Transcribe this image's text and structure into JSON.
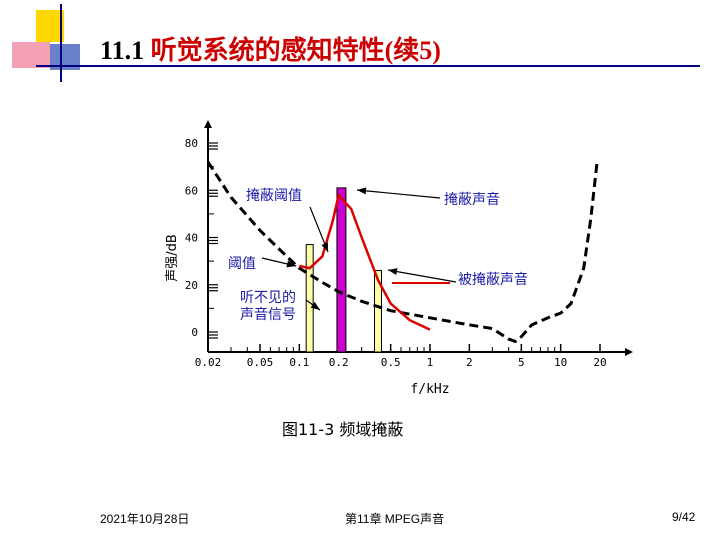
{
  "slide": {
    "title_num": "11.1 ",
    "title_text": "听觉系统的感知特性(续5)"
  },
  "chart_data": {
    "type": "line",
    "title": "",
    "xlabel": "f/kHz",
    "ylabel": "声强/dB",
    "xscale": "log",
    "xlim": [
      0.02,
      20
    ],
    "ylim": [
      0,
      80
    ],
    "x_ticks": [
      "0.02",
      "0.05",
      "0.1",
      "0.2",
      "0.5",
      "1",
      "2",
      "5",
      "10",
      "20"
    ],
    "y_ticks": [
      "0",
      "20",
      "40",
      "60",
      "80"
    ],
    "series": [
      {
        "color": "#000000",
        "style": "dashed",
        "x": [
          0.02,
          0.03,
          0.05,
          0.08,
          0.1,
          0.15,
          0.2,
          0.3,
          0.5,
          1,
          2,
          3,
          4,
          4.5,
          5,
          6,
          8,
          10,
          12,
          15,
          17,
          19
        ],
        "y": [
          72,
          57,
          43,
          32,
          27,
          21,
          17,
          13,
          9,
          6,
          3,
          1.5,
          -3,
          -4,
          -2,
          3,
          6,
          8,
          12,
          27,
          48,
          72
        ]
      },
      {
        "color": "#dd0000",
        "style": "solid",
        "x": [
          0.1,
          0.12,
          0.15,
          0.18,
          0.2,
          0.25,
          0.3,
          0.4,
          0.5,
          0.7,
          1
        ],
        "y": [
          28,
          27,
          32,
          47,
          58,
          52,
          40,
          22,
          12,
          5,
          1
        ]
      }
    ],
    "bars": [
      {
        "x": 0.12,
        "value": 37,
        "color": "#ffffa8"
      },
      {
        "x": 0.21,
        "value": 61,
        "color": "#cc00cc"
      },
      {
        "x": 0.4,
        "value": 26,
        "color": "#ffffa8"
      }
    ],
    "annotations": {
      "masking_threshold": "掩蔽阈值",
      "masking_sound": "掩蔽声音",
      "threshold": "阈值",
      "masked_sound": "被掩蔽声音",
      "inaudible_line1": "听不见的",
      "inaudible_line2": "声音信号"
    }
  },
  "caption": "图11-3 频域掩蔽",
  "footer": {
    "date": "2021年10月28日",
    "chapter": "第11章 MPEG声音",
    "page": "9/42"
  }
}
